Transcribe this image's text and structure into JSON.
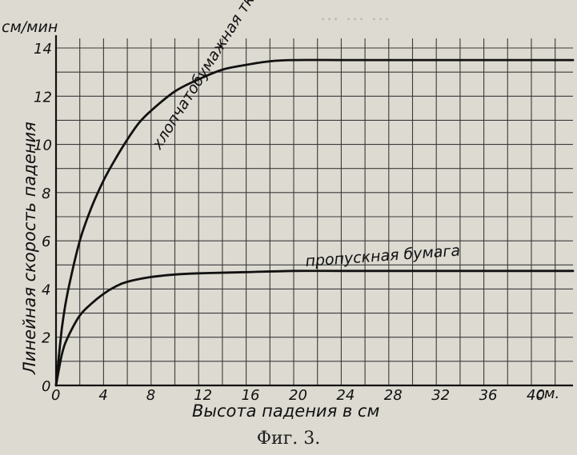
{
  "caption": "Фиг. 3.",
  "chart_data": {
    "type": "line",
    "xlabel": "Высота падения в см",
    "ylabel": "Линейная скорость падения",
    "y_unit": "см/мин",
    "x_unit": "см.",
    "xlim": [
      0,
      44
    ],
    "ylim": [
      0,
      14
    ],
    "grid": true,
    "x_ticks": [
      0,
      4,
      8,
      12,
      16,
      20,
      24,
      28,
      32,
      36,
      40
    ],
    "x_tick_labels": [
      "0",
      "4",
      "8",
      "12",
      "16",
      "20",
      "24",
      "28",
      "32",
      "36",
      "40"
    ],
    "y_ticks": [
      0,
      2,
      4,
      6,
      8,
      10,
      12,
      14
    ],
    "y_tick_labels": [
      "0",
      "2",
      "4",
      "6",
      "8",
      "10",
      "12",
      "14"
    ],
    "series": [
      {
        "name": "хлопчатобумажная ткань с перекрещ. нитями",
        "color": "#111111",
        "x": [
          0,
          0.5,
          1,
          2,
          3,
          4,
          5,
          6,
          7,
          8,
          10,
          12,
          14,
          16,
          18,
          20,
          24,
          28,
          32,
          36,
          40,
          44
        ],
        "y": [
          0,
          2.4,
          3.9,
          6.0,
          7.4,
          8.5,
          9.4,
          10.2,
          10.9,
          11.4,
          12.2,
          12.7,
          13.1,
          13.3,
          13.45,
          13.5,
          13.5,
          13.5,
          13.5,
          13.5,
          13.5,
          13.5
        ]
      },
      {
        "name": "пропускная бумага",
        "color": "#111111",
        "x": [
          0,
          0.5,
          1,
          2,
          3,
          4,
          5,
          6,
          8,
          10,
          12,
          16,
          20,
          24,
          28,
          32,
          36,
          40,
          44
        ],
        "y": [
          0,
          1.3,
          2.0,
          2.9,
          3.4,
          3.8,
          4.1,
          4.3,
          4.5,
          4.6,
          4.65,
          4.7,
          4.75,
          4.75,
          4.75,
          4.75,
          4.75,
          4.75,
          4.75
        ]
      }
    ]
  }
}
